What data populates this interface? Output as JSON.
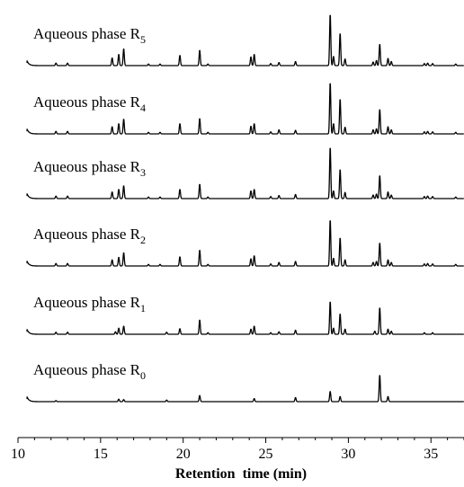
{
  "chart_data": {
    "type": "line",
    "title": "",
    "xlabel": "Retention  time (min)",
    "ylabel": "",
    "xlim": [
      10,
      37
    ],
    "x_ticks": [
      "10",
      "15",
      "20",
      "25",
      "30",
      "35"
    ],
    "grid": false,
    "legend": "none",
    "line_color": "#000000",
    "series": [
      {
        "name": "Aqueous phase R5",
        "label_main": "Aqueous phase R",
        "label_sub": "5",
        "peaks": [
          [
            12.3,
            0.05
          ],
          [
            13.0,
            0.05
          ],
          [
            15.7,
            0.15
          ],
          [
            16.1,
            0.22
          ],
          [
            16.4,
            0.33
          ],
          [
            17.9,
            0.03
          ],
          [
            18.6,
            0.03
          ],
          [
            19.8,
            0.2
          ],
          [
            21.0,
            0.3
          ],
          [
            21.5,
            0.03
          ],
          [
            24.1,
            0.17
          ],
          [
            24.3,
            0.22
          ],
          [
            25.3,
            0.04
          ],
          [
            25.8,
            0.06
          ],
          [
            26.8,
            0.08
          ],
          [
            28.9,
            1.0
          ],
          [
            29.1,
            0.18
          ],
          [
            29.5,
            0.63
          ],
          [
            29.8,
            0.13
          ],
          [
            31.5,
            0.07
          ],
          [
            31.7,
            0.1
          ],
          [
            31.9,
            0.42
          ],
          [
            32.4,
            0.14
          ],
          [
            32.6,
            0.08
          ],
          [
            34.6,
            0.04
          ],
          [
            34.8,
            0.05
          ],
          [
            35.1,
            0.04
          ],
          [
            36.5,
            0.03
          ]
        ]
      },
      {
        "name": "Aqueous phase R4",
        "label_main": "Aqueous phase R",
        "label_sub": "4",
        "peaks": [
          [
            12.3,
            0.05
          ],
          [
            13.0,
            0.05
          ],
          [
            15.7,
            0.14
          ],
          [
            16.1,
            0.2
          ],
          [
            16.4,
            0.29
          ],
          [
            17.9,
            0.03
          ],
          [
            18.6,
            0.03
          ],
          [
            19.8,
            0.2
          ],
          [
            21.0,
            0.3
          ],
          [
            21.5,
            0.03
          ],
          [
            24.1,
            0.15
          ],
          [
            24.3,
            0.2
          ],
          [
            25.3,
            0.04
          ],
          [
            25.8,
            0.08
          ],
          [
            26.8,
            0.07
          ],
          [
            28.9,
            1.0
          ],
          [
            29.1,
            0.2
          ],
          [
            29.5,
            0.68
          ],
          [
            29.8,
            0.13
          ],
          [
            31.5,
            0.08
          ],
          [
            31.7,
            0.1
          ],
          [
            31.9,
            0.48
          ],
          [
            32.4,
            0.14
          ],
          [
            32.6,
            0.08
          ],
          [
            34.6,
            0.04
          ],
          [
            34.8,
            0.05
          ],
          [
            35.1,
            0.04
          ],
          [
            36.5,
            0.03
          ]
        ]
      },
      {
        "name": "Aqueous phase R3",
        "label_main": "Aqueous phase R",
        "label_sub": "3",
        "peaks": [
          [
            12.3,
            0.05
          ],
          [
            13.0,
            0.05
          ],
          [
            15.7,
            0.13
          ],
          [
            16.1,
            0.18
          ],
          [
            16.4,
            0.25
          ],
          [
            17.9,
            0.03
          ],
          [
            18.6,
            0.03
          ],
          [
            19.8,
            0.18
          ],
          [
            21.0,
            0.28
          ],
          [
            21.5,
            0.03
          ],
          [
            24.1,
            0.15
          ],
          [
            24.3,
            0.18
          ],
          [
            25.3,
            0.04
          ],
          [
            25.8,
            0.06
          ],
          [
            26.8,
            0.08
          ],
          [
            28.9,
            1.0
          ],
          [
            29.1,
            0.15
          ],
          [
            29.5,
            0.57
          ],
          [
            29.8,
            0.12
          ],
          [
            31.5,
            0.07
          ],
          [
            31.7,
            0.09
          ],
          [
            31.9,
            0.45
          ],
          [
            32.4,
            0.13
          ],
          [
            32.6,
            0.07
          ],
          [
            34.6,
            0.04
          ],
          [
            34.8,
            0.05
          ],
          [
            35.1,
            0.04
          ],
          [
            36.5,
            0.03
          ]
        ]
      },
      {
        "name": "Aqueous phase R2",
        "label_main": "Aqueous phase R",
        "label_sub": "2",
        "peaks": [
          [
            12.3,
            0.05
          ],
          [
            13.0,
            0.05
          ],
          [
            15.7,
            0.12
          ],
          [
            16.1,
            0.17
          ],
          [
            16.4,
            0.26
          ],
          [
            17.9,
            0.03
          ],
          [
            18.6,
            0.03
          ],
          [
            19.8,
            0.18
          ],
          [
            21.0,
            0.31
          ],
          [
            21.5,
            0.03
          ],
          [
            24.1,
            0.14
          ],
          [
            24.3,
            0.2
          ],
          [
            25.3,
            0.04
          ],
          [
            25.8,
            0.07
          ],
          [
            26.8,
            0.09
          ],
          [
            28.9,
            0.9
          ],
          [
            29.1,
            0.15
          ],
          [
            29.5,
            0.55
          ],
          [
            29.8,
            0.12
          ],
          [
            31.5,
            0.07
          ],
          [
            31.7,
            0.09
          ],
          [
            31.9,
            0.45
          ],
          [
            32.4,
            0.12
          ],
          [
            32.6,
            0.07
          ],
          [
            34.6,
            0.04
          ],
          [
            34.8,
            0.05
          ],
          [
            35.1,
            0.04
          ],
          [
            36.5,
            0.03
          ]
        ]
      },
      {
        "name": "Aqueous phase R1",
        "label_main": "Aqueous phase R",
        "label_sub": "1",
        "peaks": [
          [
            12.3,
            0.04
          ],
          [
            13.0,
            0.04
          ],
          [
            15.9,
            0.05
          ],
          [
            16.1,
            0.12
          ],
          [
            16.4,
            0.16
          ],
          [
            19.0,
            0.04
          ],
          [
            19.8,
            0.11
          ],
          [
            21.0,
            0.28
          ],
          [
            21.5,
            0.03
          ],
          [
            24.1,
            0.1
          ],
          [
            24.3,
            0.16
          ],
          [
            25.3,
            0.03
          ],
          [
            25.8,
            0.05
          ],
          [
            26.8,
            0.08
          ],
          [
            28.9,
            0.64
          ],
          [
            29.1,
            0.12
          ],
          [
            29.5,
            0.4
          ],
          [
            29.8,
            0.1
          ],
          [
            31.6,
            0.06
          ],
          [
            31.9,
            0.52
          ],
          [
            32.4,
            0.1
          ],
          [
            32.6,
            0.06
          ],
          [
            34.6,
            0.03
          ],
          [
            35.1,
            0.03
          ]
        ]
      },
      {
        "name": "Aqueous phase R0",
        "label_main": "Aqueous phase R",
        "label_sub": "0",
        "peaks": [
          [
            12.3,
            0.02
          ],
          [
            16.1,
            0.05
          ],
          [
            16.4,
            0.04
          ],
          [
            19.0,
            0.03
          ],
          [
            21.0,
            0.12
          ],
          [
            24.3,
            0.06
          ],
          [
            26.8,
            0.08
          ],
          [
            28.9,
            0.2
          ],
          [
            29.5,
            0.1
          ],
          [
            31.9,
            0.52
          ],
          [
            32.4,
            0.1
          ]
        ]
      }
    ]
  }
}
